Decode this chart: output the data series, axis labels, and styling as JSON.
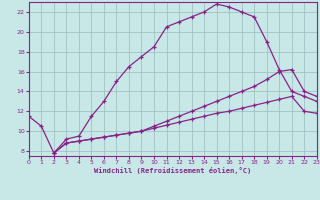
{
  "bg_color": "#c8e8e8",
  "line_color": "#882288",
  "grid_color": "#99bbbb",
  "xlabel": "Windchill (Refroidissement éolien,°C)",
  "xlim": [
    0,
    23
  ],
  "ylim": [
    7.5,
    23.0
  ],
  "xticks": [
    0,
    1,
    2,
    3,
    4,
    5,
    6,
    7,
    8,
    9,
    10,
    11,
    12,
    13,
    14,
    15,
    16,
    17,
    18,
    19,
    20,
    21,
    22,
    23
  ],
  "yticks": [
    8,
    10,
    12,
    14,
    16,
    18,
    20,
    22
  ],
  "curve1_x": [
    0,
    1,
    2,
    3,
    4,
    5,
    6,
    7,
    8,
    9,
    10,
    11,
    12,
    13,
    14,
    15,
    16,
    17,
    18,
    19,
    20,
    21,
    22,
    23
  ],
  "curve1_y": [
    11.5,
    10.5,
    7.8,
    9.2,
    9.5,
    11.5,
    13.0,
    15.0,
    16.5,
    17.5,
    18.5,
    20.5,
    21.0,
    21.5,
    22.0,
    22.8,
    22.5,
    22.0,
    21.5,
    19.0,
    16.2,
    14.0,
    13.5,
    13.0
  ],
  "curve2_x": [
    2,
    3,
    4,
    5,
    6,
    7,
    8,
    9,
    10,
    11,
    12,
    13,
    14,
    15,
    16,
    17,
    18,
    19,
    20,
    21,
    22,
    23
  ],
  "curve2_y": [
    7.8,
    8.8,
    9.0,
    9.2,
    9.4,
    9.6,
    9.8,
    10.0,
    10.5,
    11.0,
    11.5,
    12.0,
    12.5,
    13.0,
    13.5,
    14.0,
    14.5,
    15.2,
    16.0,
    16.2,
    14.0,
    13.5
  ],
  "curve3_x": [
    2,
    3,
    4,
    5,
    6,
    7,
    8,
    9,
    10,
    11,
    12,
    13,
    14,
    15,
    16,
    17,
    18,
    19,
    20,
    21,
    22,
    23
  ],
  "curve3_y": [
    7.8,
    8.8,
    9.0,
    9.2,
    9.4,
    9.6,
    9.8,
    10.0,
    10.3,
    10.6,
    10.9,
    11.2,
    11.5,
    11.8,
    12.0,
    12.3,
    12.6,
    12.9,
    13.2,
    13.5,
    12.0,
    11.8
  ]
}
